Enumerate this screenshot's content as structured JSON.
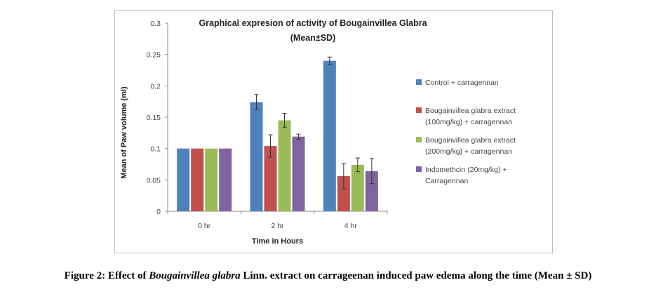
{
  "chart_data": {
    "type": "bar",
    "title_line1": "Graphical expresion of activity of Bougainvillea Glabra",
    "title_line2": "(Mean±SD)",
    "xlabel": "Time in Hours",
    "ylabel": "Mean of Paw volume (ml)",
    "categories": [
      "0 hr",
      "2 hr",
      "4 hr"
    ],
    "ylim": [
      0,
      0.3
    ],
    "yticks": [
      "0",
      "0.05",
      "0.1",
      "0.15",
      "0.2",
      "0.25",
      "0.3"
    ],
    "legend_position": "right",
    "grid": false,
    "series": [
      {
        "name": "Control + carragennan",
        "legend_lines": [
          "Control + carragennan"
        ],
        "color": "#4f81bd",
        "values": [
          0.1,
          0.174,
          0.24
        ],
        "errors": [
          0.001,
          0.012,
          0.006
        ]
      },
      {
        "name": "Bougainvillea glabra extract (100mg/kg) + carragennan",
        "legend_lines": [
          "Bougainvillea glabra extract",
          "(100mg/kg) + carragennan"
        ],
        "color": "#c0504d",
        "values": [
          0.1,
          0.104,
          0.056
        ],
        "errors": [
          0.001,
          0.018,
          0.02
        ]
      },
      {
        "name": "Bougainvillea glabra extract (200mg/kg) + carragennan",
        "legend_lines": [
          "Bougainvillea glabra extract",
          "(200mg/kg) + carragennan"
        ],
        "color": "#9bbb59",
        "values": [
          0.1,
          0.145,
          0.074
        ],
        "errors": [
          0.001,
          0.011,
          0.011
        ]
      },
      {
        "name": "Indomethcin (20mg/kg) + Carragennan",
        "legend_lines": [
          "Indomethcin (20mg/kg) +",
          "Carragennan"
        ],
        "color": "#8064a2",
        "values": [
          0.1,
          0.119,
          0.064
        ],
        "errors": [
          0.001,
          0.004,
          0.02
        ]
      }
    ]
  },
  "caption": {
    "prefix": "Figure 2: Effect of ",
    "italic": "Bougainvillea glabra",
    "suffix": " Linn. extract on carrageenan induced paw edema along the time (Mean ± SD)"
  }
}
